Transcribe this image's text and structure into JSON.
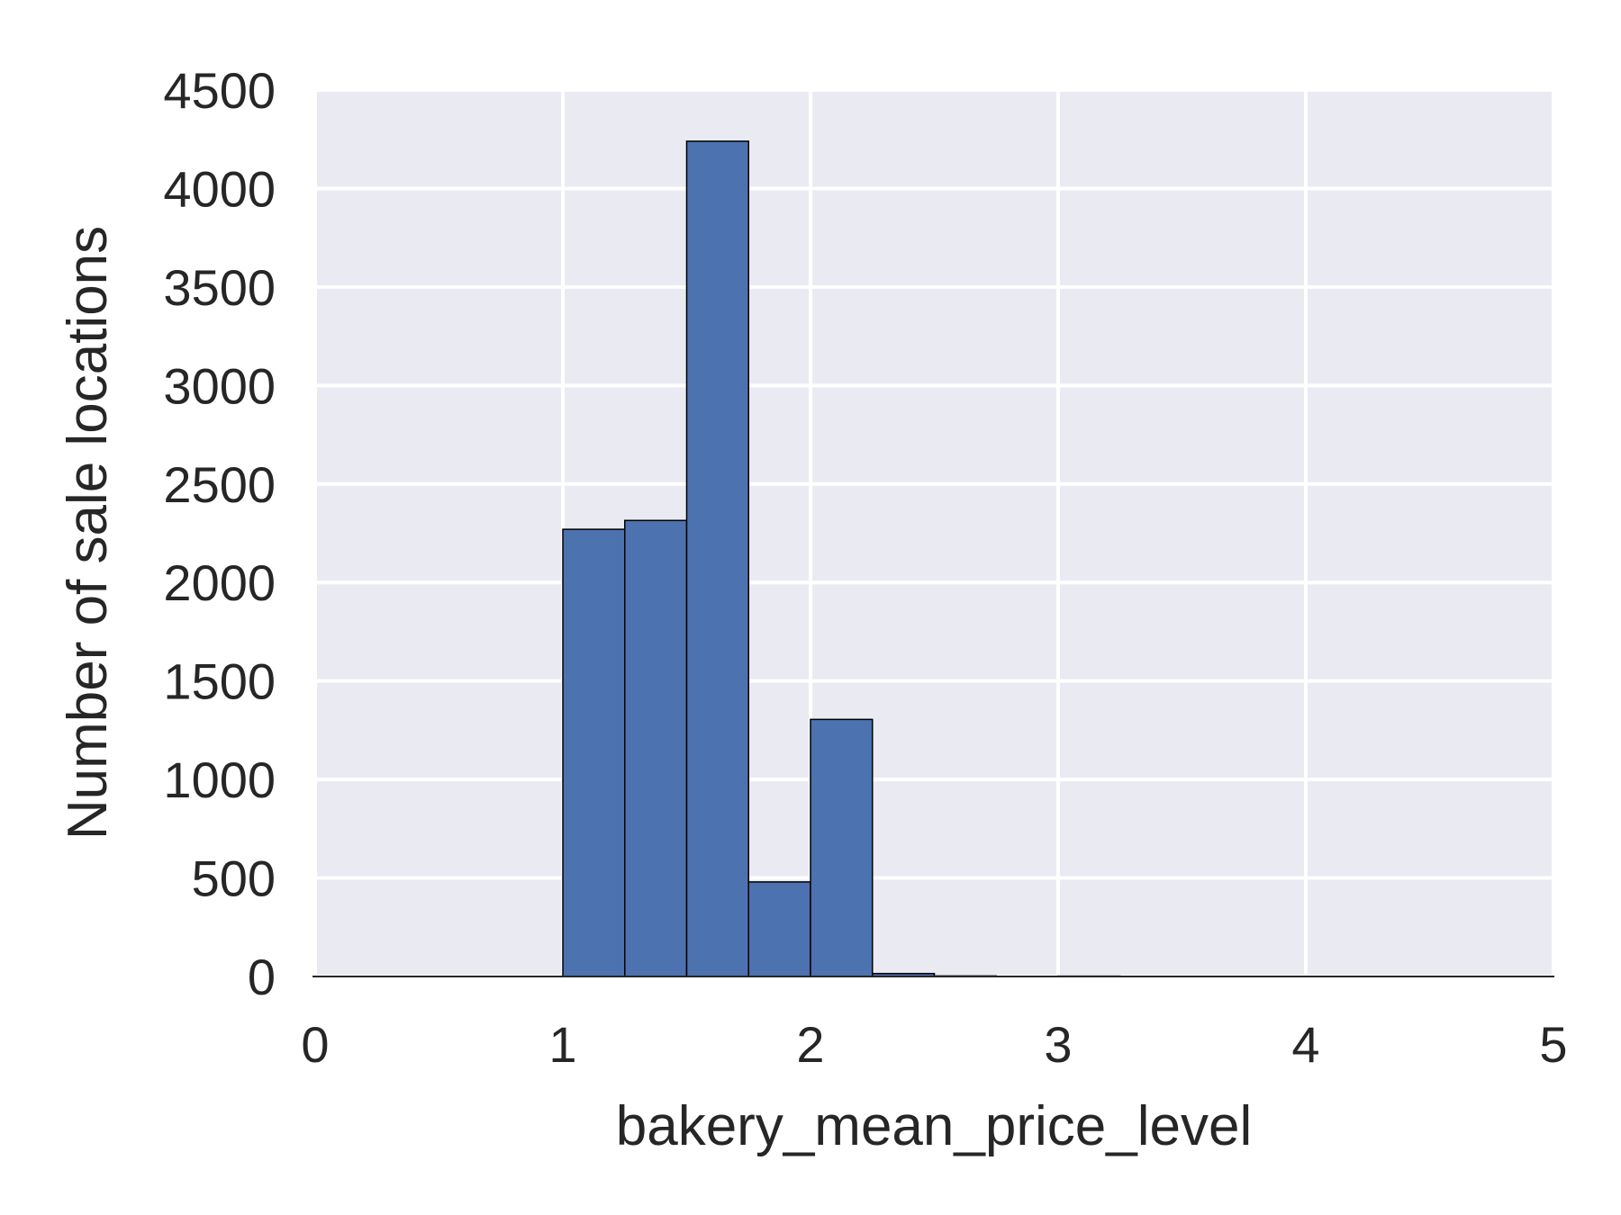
{
  "chart_data": {
    "type": "bar",
    "title": "",
    "xlabel": "bakery_mean_price_level",
    "ylabel": "Number of sale locations",
    "xlim": [
      0,
      5
    ],
    "ylim": [
      0,
      4500
    ],
    "xticks": [
      "0",
      "1",
      "2",
      "3",
      "4",
      "5"
    ],
    "yticks": [
      "0",
      "500",
      "1000",
      "1500",
      "2000",
      "2500",
      "3000",
      "3500",
      "4000",
      "4500"
    ],
    "bin_width": 0.25,
    "bins": [
      {
        "x0": 0.0,
        "count": 0
      },
      {
        "x0": 0.25,
        "count": 0
      },
      {
        "x0": 0.5,
        "count": 0
      },
      {
        "x0": 0.75,
        "count": 0
      },
      {
        "x0": 1.0,
        "count": 2270
      },
      {
        "x0": 1.25,
        "count": 2315
      },
      {
        "x0": 1.5,
        "count": 4240
      },
      {
        "x0": 1.75,
        "count": 480
      },
      {
        "x0": 2.0,
        "count": 1305
      },
      {
        "x0": 2.25,
        "count": 15
      },
      {
        "x0": 2.5,
        "count": 3
      },
      {
        "x0": 2.75,
        "count": 1
      },
      {
        "x0": 3.0,
        "count": 2
      },
      {
        "x0": 3.25,
        "count": 0
      },
      {
        "x0": 3.5,
        "count": 0
      },
      {
        "x0": 3.75,
        "count": 0
      },
      {
        "x0": 4.0,
        "count": 0
      },
      {
        "x0": 4.25,
        "count": 0
      },
      {
        "x0": 4.5,
        "count": 0
      },
      {
        "x0": 4.75,
        "count": 0
      }
    ],
    "grid": true,
    "legend": "none",
    "colors": {
      "bar_fill": "#4c72b0",
      "bar_edge": "#000000",
      "plot_background": "#eaeaf2",
      "grid": "#ffffff",
      "text": "#262626"
    }
  }
}
